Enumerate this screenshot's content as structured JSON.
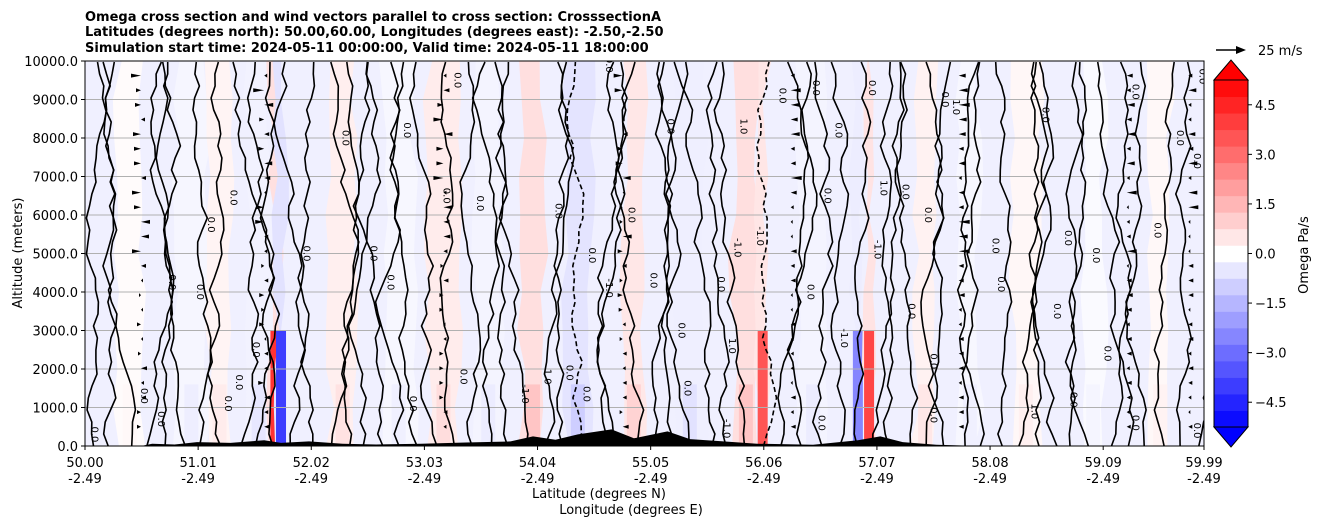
{
  "chart_data": {
    "type": "heatmap",
    "title_lines": [
      "Omega cross section and wind vectors parallel to cross section: CrosssectionA",
      "Latitudes (degrees north): 50.00,60.00, Longitudes (degrees east): -2.50,-2.50",
      "Simulation start time: 2024-05-11 00:00:00, Valid time: 2024-05-11 18:00:00"
    ],
    "ylabel": "Altitude (meters)",
    "xlabel_line1": "Latitude (degrees N)",
    "xlabel_line2": "Longitude (degrees E)",
    "ylim": [
      0,
      10000
    ],
    "y_ticks": [
      0,
      1000,
      2000,
      3000,
      4000,
      5000,
      6000,
      7000,
      8000,
      9000,
      10000
    ],
    "y_tick_labels": [
      "0.0",
      "1000.0",
      "2000.0",
      "3000.0",
      "4000.0",
      "5000.0",
      "6000.0",
      "7000.0",
      "8000.0",
      "9000.0",
      "10000.0"
    ],
    "xlim": [
      50.0,
      59.99
    ],
    "x_ticks": [
      50.0,
      51.01,
      52.02,
      53.03,
      54.04,
      55.05,
      56.06,
      57.07,
      58.08,
      59.09,
      59.99
    ],
    "x_tick_lat_labels": [
      "50.00",
      "51.01",
      "52.02",
      "53.03",
      "54.04",
      "55.05",
      "56.06",
      "57.07",
      "58.08",
      "59.09",
      "59.99"
    ],
    "x_tick_lon_labels": [
      "-2.49",
      "-2.49",
      "-2.49",
      "-2.49",
      "-2.49",
      "-2.49",
      "-2.49",
      "-2.49",
      "-2.49",
      "-2.49",
      "-2.49"
    ],
    "grid": "horizontal",
    "colorbar": {
      "label": "Omega Pa/s",
      "range": [
        -5.25,
        5.25
      ],
      "ticks": [
        4.5,
        3.0,
        1.5,
        0.0,
        -1.5,
        -3.0,
        -4.5
      ],
      "tick_labels": [
        "4.5",
        "3.0",
        "1.5",
        "0.0",
        "−1.5",
        "−3.0",
        "−4.5"
      ],
      "extend": "both",
      "positive_color": "#ff0000",
      "negative_color": "#0000ff",
      "neutral_color": "#ffffff"
    },
    "quiver_key": {
      "label": "25 m/s"
    },
    "omega_bands": [
      {
        "lat": 50.4,
        "value": 0.15
      },
      {
        "lat": 50.95,
        "value": -0.35
      },
      {
        "lat": 51.2,
        "value": 0.4
      },
      {
        "lat": 51.55,
        "value": -0.5
      },
      {
        "lat": 51.7,
        "value": 4.2
      },
      {
        "lat": 51.75,
        "value": -4.0
      },
      {
        "lat": 52.3,
        "value": 0.6
      },
      {
        "lat": 52.8,
        "value": -0.3
      },
      {
        "lat": 53.2,
        "value": 0.7
      },
      {
        "lat": 53.6,
        "value": -0.4
      },
      {
        "lat": 54.0,
        "value": 1.2
      },
      {
        "lat": 54.4,
        "value": -1.0
      },
      {
        "lat": 54.9,
        "value": 0.9
      },
      {
        "lat": 55.4,
        "value": -0.6
      },
      {
        "lat": 55.9,
        "value": 1.2
      },
      {
        "lat": 56.05,
        "value": 3.5
      },
      {
        "lat": 56.5,
        "value": -0.4
      },
      {
        "lat": 56.9,
        "value": -2.5
      },
      {
        "lat": 57.0,
        "value": 3.8
      },
      {
        "lat": 57.5,
        "value": 0.5
      },
      {
        "lat": 57.9,
        "value": -0.3
      },
      {
        "lat": 58.4,
        "value": 0.3
      },
      {
        "lat": 59.0,
        "value": -0.2
      },
      {
        "lat": 59.6,
        "value": 0.25
      }
    ],
    "contour_labels": [
      {
        "text": "0.0",
        "lat": 50.06,
        "alt": 300
      },
      {
        "text": "0.0",
        "lat": 50.5,
        "alt": 1300
      },
      {
        "text": "0.0",
        "lat": 50.65,
        "alt": 700
      },
      {
        "text": "0.0",
        "lat": 50.75,
        "alt": 4250
      },
      {
        "text": "0.0",
        "lat": 51.0,
        "alt": 4000
      },
      {
        "text": "0.0",
        "lat": 51.1,
        "alt": 5750
      },
      {
        "text": "0.0",
        "lat": 51.3,
        "alt": 6450
      },
      {
        "text": "0.0",
        "lat": 51.35,
        "alt": 1650
      },
      {
        "text": "0.0",
        "lat": 51.25,
        "alt": 1100
      },
      {
        "text": "0.0",
        "lat": 51.5,
        "alt": 2500
      },
      {
        "text": "0.0",
        "lat": 51.95,
        "alt": 5000
      },
      {
        "text": "0.0",
        "lat": 52.3,
        "alt": 8000
      },
      {
        "text": "0.0",
        "lat": 52.55,
        "alt": 5000
      },
      {
        "text": "0.0",
        "lat": 52.7,
        "alt": 4250
      },
      {
        "text": "0.0",
        "lat": 52.85,
        "alt": 8200
      },
      {
        "text": "0.0",
        "lat": 53.2,
        "alt": 6500
      },
      {
        "text": "0.0",
        "lat": 53.5,
        "alt": 6300
      },
      {
        "text": "0.0",
        "lat": 53.3,
        "alt": 9500
      },
      {
        "text": "0.0",
        "lat": 52.9,
        "alt": 1100
      },
      {
        "text": "0.0",
        "lat": 53.35,
        "alt": 1800
      },
      {
        "text": "-1.0",
        "lat": 53.9,
        "alt": 1350
      },
      {
        "text": "1.0",
        "lat": 54.1,
        "alt": 1800
      },
      {
        "text": "0.0",
        "lat": 54.3,
        "alt": 1900
      },
      {
        "text": "0.0",
        "lat": 54.45,
        "alt": 1350
      },
      {
        "text": "0.0",
        "lat": 54.2,
        "alt": 6100
      },
      {
        "text": "-1.0",
        "lat": 54.65,
        "alt": 4100
      },
      {
        "text": "0.0",
        "lat": 54.5,
        "alt": 4950
      },
      {
        "text": "0.0",
        "lat": 54.85,
        "alt": 6000
      },
      {
        "text": "0.0",
        "lat": 54.65,
        "alt": 9900
      },
      {
        "text": "0.0",
        "lat": 55.05,
        "alt": 4300
      },
      {
        "text": "0.0",
        "lat": 55.2,
        "alt": 8300
      },
      {
        "text": "0.0",
        "lat": 55.3,
        "alt": 3000
      },
      {
        "text": "0.0",
        "lat": 55.35,
        "alt": 1500
      },
      {
        "text": "1.0",
        "lat": 55.75,
        "alt": 2600
      },
      {
        "text": "0.0",
        "lat": 55.65,
        "alt": 4200
      },
      {
        "text": "-1.0",
        "lat": 55.8,
        "alt": 5150
      },
      {
        "text": "-1.0",
        "lat": 56.0,
        "alt": 5450
      },
      {
        "text": "1.0",
        "lat": 55.85,
        "alt": 8300
      },
      {
        "text": "0.0",
        "lat": 56.2,
        "alt": 9100
      },
      {
        "text": "-1.0",
        "lat": 55.7,
        "alt": 450
      },
      {
        "text": "0.0",
        "lat": 56.5,
        "alt": 9300
      },
      {
        "text": "0.0",
        "lat": 56.7,
        "alt": 8200
      },
      {
        "text": "0.0",
        "lat": 56.45,
        "alt": 4000
      },
      {
        "text": "0.0",
        "lat": 56.6,
        "alt": 6500
      },
      {
        "text": "-1.0",
        "lat": 56.75,
        "alt": 2800
      },
      {
        "text": "0.0",
        "lat": 56.55,
        "alt": 600
      },
      {
        "text": "0.0",
        "lat": 57.0,
        "alt": 9300
      },
      {
        "text": "1.0",
        "lat": 57.1,
        "alt": 6700
      },
      {
        "text": "-1.0",
        "lat": 57.05,
        "alt": 5100
      },
      {
        "text": "0.0",
        "lat": 57.3,
        "alt": 6600
      },
      {
        "text": "0.0",
        "lat": 57.35,
        "alt": 3500
      },
      {
        "text": "0.0",
        "lat": 57.55,
        "alt": 2200
      },
      {
        "text": "0.0",
        "lat": 57.5,
        "alt": 6000
      },
      {
        "text": "0.0",
        "lat": 57.65,
        "alt": 9000
      },
      {
        "text": "1.0",
        "lat": 57.75,
        "alt": 8800
      },
      {
        "text": "0.0",
        "lat": 57.55,
        "alt": 800
      },
      {
        "text": "0.0",
        "lat": 58.1,
        "alt": 5200
      },
      {
        "text": "0.0",
        "lat": 58.15,
        "alt": 4200
      },
      {
        "text": "0.0",
        "lat": 58.55,
        "alt": 8600
      },
      {
        "text": "0.0",
        "lat": 58.75,
        "alt": 5400
      },
      {
        "text": "0.0",
        "lat": 58.65,
        "alt": 3500
      },
      {
        "text": "1.0",
        "lat": 58.45,
        "alt": 900
      },
      {
        "text": "0.0",
        "lat": 58.8,
        "alt": 1200
      },
      {
        "text": "0.0",
        "lat": 59.0,
        "alt": 4950
      },
      {
        "text": "0.0",
        "lat": 59.1,
        "alt": 2400
      },
      {
        "text": "0.0",
        "lat": 59.35,
        "alt": 9200
      },
      {
        "text": "0.0",
        "lat": 59.35,
        "alt": 600
      },
      {
        "text": "0.0",
        "lat": 59.55,
        "alt": 5600
      },
      {
        "text": "0.0",
        "lat": 59.75,
        "alt": 8000
      },
      {
        "text": "0.0",
        "lat": 59.9,
        "alt": 7400
      },
      {
        "text": "0.0",
        "lat": 59.95,
        "alt": 9600
      },
      {
        "text": "0.0",
        "lat": 59.9,
        "alt": 400
      }
    ],
    "terrain": [
      {
        "lat": 50.0,
        "alt": 0
      },
      {
        "lat": 50.5,
        "alt": 0
      },
      {
        "lat": 50.6,
        "alt": 60
      },
      {
        "lat": 50.8,
        "alt": 40
      },
      {
        "lat": 51.0,
        "alt": 100
      },
      {
        "lat": 51.3,
        "alt": 80
      },
      {
        "lat": 51.6,
        "alt": 150
      },
      {
        "lat": 51.75,
        "alt": 80
      },
      {
        "lat": 52.0,
        "alt": 120
      },
      {
        "lat": 52.3,
        "alt": 60
      },
      {
        "lat": 52.6,
        "alt": 40
      },
      {
        "lat": 53.0,
        "alt": 60
      },
      {
        "lat": 53.4,
        "alt": 90
      },
      {
        "lat": 53.8,
        "alt": 120
      },
      {
        "lat": 54.0,
        "alt": 250
      },
      {
        "lat": 54.2,
        "alt": 160
      },
      {
        "lat": 54.4,
        "alt": 300
      },
      {
        "lat": 54.7,
        "alt": 430
      },
      {
        "lat": 54.9,
        "alt": 200
      },
      {
        "lat": 55.2,
        "alt": 380
      },
      {
        "lat": 55.4,
        "alt": 180
      },
      {
        "lat": 55.7,
        "alt": 120
      },
      {
        "lat": 56.0,
        "alt": 60
      },
      {
        "lat": 56.5,
        "alt": 30
      },
      {
        "lat": 56.9,
        "alt": 150
      },
      {
        "lat": 57.1,
        "alt": 250
      },
      {
        "lat": 57.3,
        "alt": 100
      },
      {
        "lat": 57.6,
        "alt": 30
      },
      {
        "lat": 58.0,
        "alt": 0
      },
      {
        "lat": 59.99,
        "alt": 0
      }
    ]
  }
}
